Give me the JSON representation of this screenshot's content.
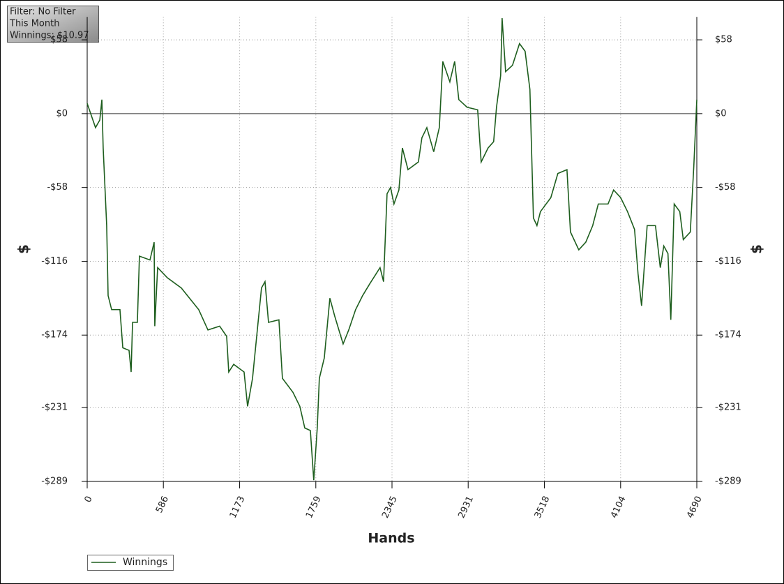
{
  "chart_data": {
    "type": "line",
    "info": [
      "Filter: No Filter",
      "This Month",
      "Winnings: $10.97"
    ],
    "xlabel": "Hands",
    "ylabel": "$",
    "y2label": "$",
    "x": [
      0,
      27,
      64,
      97,
      113,
      123,
      150,
      161,
      188,
      252,
      274,
      322,
      338,
      349,
      386,
      402,
      483,
      515,
      520,
      542,
      617,
      724,
      858,
      929,
      1019,
      1073,
      1089,
      1127,
      1207,
      1234,
      1272,
      1304,
      1341,
      1368,
      1395,
      1475,
      1502,
      1583,
      1636,
      1674,
      1717,
      1743,
      1770,
      1786,
      1824,
      1867,
      1904,
      1969,
      2012,
      2065,
      2119,
      2172,
      2253,
      2280,
      2307,
      2334,
      2360,
      2398,
      2425,
      2468,
      2548,
      2575,
      2613,
      2666,
      2709,
      2736,
      2790,
      2827,
      2859,
      2923,
      3004,
      3031,
      3084,
      3127,
      3149,
      3181,
      3192,
      3219,
      3272,
      3326,
      3369,
      3406,
      3433,
      3460,
      3487,
      3567,
      3621,
      3691,
      3718,
      3782,
      3836,
      3889,
      3932,
      4007,
      4050,
      4104,
      4157,
      4211,
      4238,
      4265,
      4308,
      4372,
      4409,
      4436,
      4468,
      4490,
      4516,
      4559,
      4586,
      4640,
      4667,
      4690
    ],
    "series": [
      {
        "name": "Winnings",
        "color": "#1e5e1e",
        "values": [
          8,
          0,
          -11,
          -5,
          11,
          -27,
          -88,
          -143,
          -154,
          -154,
          -184,
          -186,
          -203,
          -164,
          -164,
          -112,
          -115,
          -101,
          -167,
          -121,
          -129,
          -137,
          -154,
          -170,
          -167,
          -175,
          -203,
          -197,
          -203,
          -230,
          -208,
          -175,
          -137,
          -132,
          -164,
          -162,
          -208,
          -219,
          -230,
          -247,
          -249,
          -288,
          -247,
          -208,
          -192,
          -145,
          -159,
          -181,
          -170,
          -154,
          -143,
          -134,
          -121,
          -132,
          -63,
          -58,
          -71,
          -60,
          -27,
          -44,
          -38,
          -19,
          -11,
          -30,
          -11,
          41,
          25,
          41,
          11,
          5,
          3,
          -38,
          -27,
          -22,
          5,
          30,
          75,
          33,
          38,
          55,
          49,
          19,
          -82,
          -88,
          -77,
          -66,
          -47,
          -44,
          -93,
          -107,
          -101,
          -88,
          -71,
          -71,
          -60,
          -66,
          -77,
          -91,
          -126,
          -151,
          -88,
          -88,
          -121,
          -104,
          -110,
          -162,
          -71,
          -77,
          -99,
          -93,
          -41,
          11
        ]
      }
    ],
    "xlim": [
      0,
      4690
    ],
    "xticks": [
      0,
      586,
      1173,
      1759,
      2345,
      2931,
      3518,
      4104,
      4690
    ],
    "ylim": [
      -289,
      76
    ],
    "yticks": [
      {
        "value": 58,
        "label": "$58"
      },
      {
        "value": 0,
        "label": "$0"
      },
      {
        "value": -58,
        "label": "-$58"
      },
      {
        "value": -116,
        "label": "-$116"
      },
      {
        "value": -174,
        "label": "-$174"
      },
      {
        "value": -231,
        "label": "-$231"
      },
      {
        "value": -289,
        "label": "-$289"
      }
    ],
    "grid": true
  }
}
